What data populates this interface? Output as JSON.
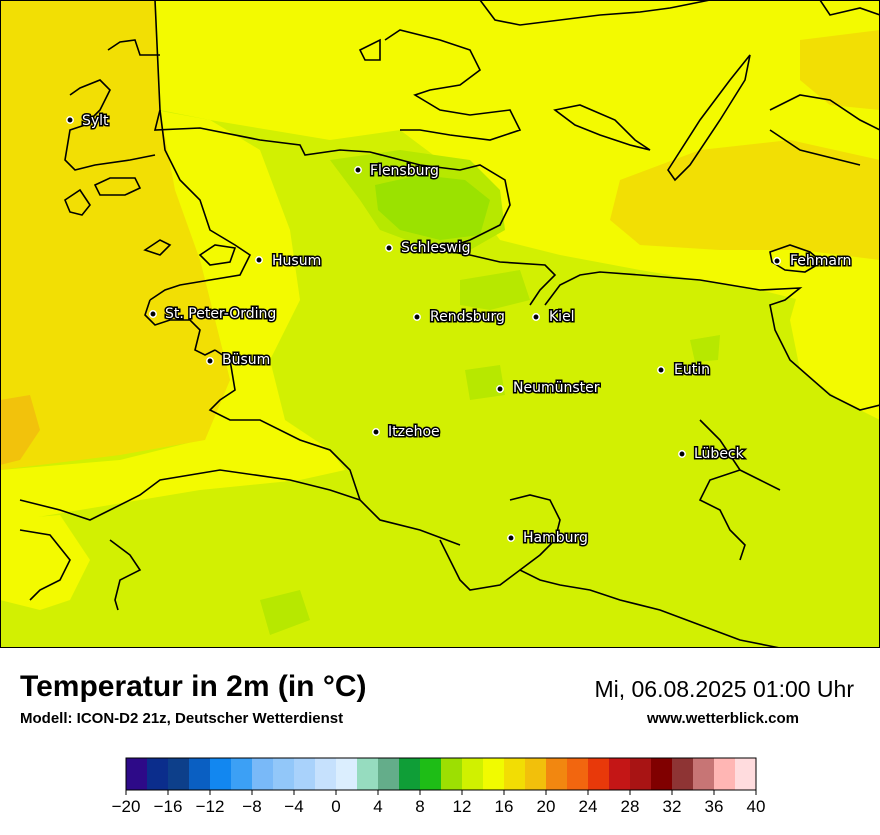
{
  "map": {
    "cities": [
      {
        "name": "Sylt"
      },
      {
        "name": "Flensburg"
      },
      {
        "name": "Schleswig"
      },
      {
        "name": "Husum"
      },
      {
        "name": "Fehmarn"
      },
      {
        "name": "St. Peter-Ording"
      },
      {
        "name": "Rendsburg"
      },
      {
        "name": "Kiel"
      },
      {
        "name": "Büsum"
      },
      {
        "name": "Eutin"
      },
      {
        "name": "Neumünster"
      },
      {
        "name": "Itzehoe"
      },
      {
        "name": "Lübeck"
      },
      {
        "name": "Hamburg"
      }
    ],
    "field_colors": {
      "band_16_18": "#f3fa00",
      "band_14_16": "#d2f002",
      "band_12_14": "#b7e800",
      "band_10_12": "#9be200",
      "band_18_20": "#f2df04",
      "band_20_22": "#f2c20c",
      "coast_line": "#000000"
    }
  },
  "footer": {
    "title": "Temperatur in 2m (in °C)",
    "subtitle": "Modell: ICON-D2 21z, Deutscher Wetterdienst",
    "datetime": "Mi, 06.08.2025 01:00 Uhr",
    "website": "www.wetterblick.com"
  },
  "colorbar": {
    "ticks": [
      "−20",
      "−16",
      "−12",
      "−8",
      "−4",
      "0",
      "4",
      "8",
      "12",
      "16",
      "20",
      "24",
      "28",
      "32",
      "36",
      "40"
    ],
    "colors": [
      "#2d0a88",
      "#0b2d8c",
      "#0d3f8a",
      "#0a5fc2",
      "#1287f0",
      "#3ca0f5",
      "#79b9f8",
      "#92c7f9",
      "#a9d2fb",
      "#c6e1fd",
      "#dbeefe",
      "#96dcbf",
      "#64ad8a",
      "#0f9e37",
      "#1ebd16",
      "#9ddf02",
      "#d0f100",
      "#f1fb00",
      "#f2dd04",
      "#f2c00b",
      "#f28710",
      "#f2660f",
      "#e8390a",
      "#c41616",
      "#a81414",
      "#800000",
      "#8e3434",
      "#c77575",
      "#ffb6b4",
      "#ffdcde"
    ]
  }
}
